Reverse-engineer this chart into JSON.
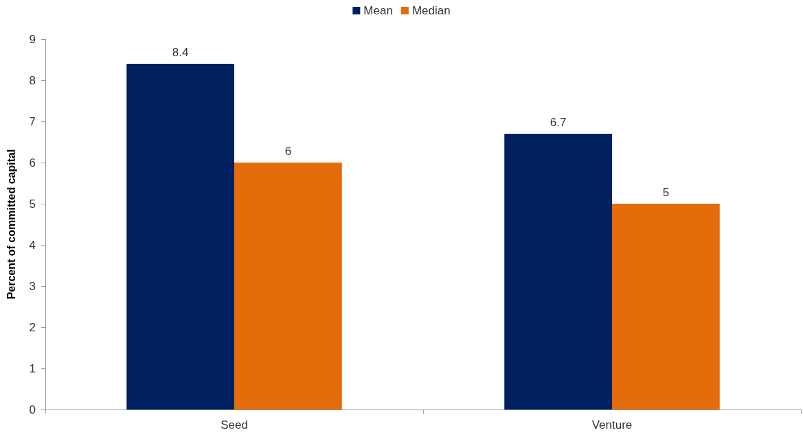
{
  "chart_data": {
    "type": "bar",
    "ylabel": "Percent of committed capital",
    "categories": [
      "Seed",
      "Venture"
    ],
    "series": [
      {
        "name": "Mean",
        "color": "#002060",
        "values": [
          8.4,
          6.7
        ]
      },
      {
        "name": "Median",
        "color": "#e46c0a",
        "values": [
          6,
          5
        ]
      }
    ],
    "ylim": [
      0,
      9
    ],
    "yticks": [
      0,
      1,
      2,
      3,
      4,
      5,
      6,
      7,
      8,
      9
    ],
    "grid": false,
    "legend": "top",
    "data_labels": true
  }
}
